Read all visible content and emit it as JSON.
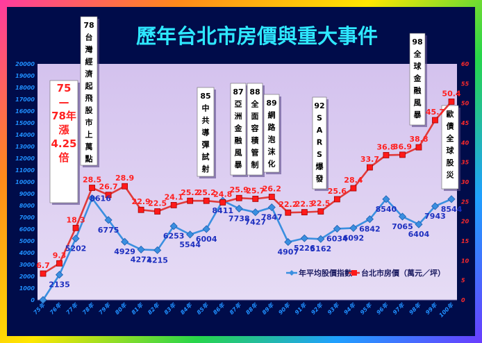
{
  "title": "歷年台北市房價與重大事件",
  "chart_data": {
    "type": "line",
    "title": "歷年台北市房價與重大事件",
    "categories": [
      "75年",
      "76年",
      "77年",
      "78年",
      "79年",
      "80年",
      "81年",
      "82年",
      "83年",
      "84年",
      "85年",
      "86年",
      "87年",
      "88年",
      "89年",
      "90年",
      "91年",
      "92年",
      "93年",
      "94年",
      "95年",
      "96年",
      "97年",
      "98年",
      "99年",
      "100年"
    ],
    "y_left": {
      "range": [
        0,
        20000
      ],
      "ticks": [
        "0",
        "1000",
        "2000",
        "3000",
        "4000",
        "5000",
        "6000",
        "7000",
        "8000",
        "9000",
        "10000",
        "11000",
        "12000",
        "13000",
        "14000",
        "15000",
        "16000",
        "17000",
        "18000",
        "19000",
        "20000"
      ]
    },
    "y_right": {
      "range": [
        0,
        60
      ],
      "ticks": [
        "0",
        "5",
        "10",
        "15",
        "20",
        "25",
        "30",
        "35",
        "40",
        "45",
        "50",
        "55",
        "60"
      ]
    },
    "series": [
      {
        "name": "年平均股價指數",
        "axis": "left",
        "color": "#3a8fe0",
        "values": [
          0,
          2135,
          5202,
          8616,
          6775,
          4929,
          4272,
          4215,
          6253,
          5544,
          6004,
          8411,
          7738,
          7427,
          7847,
          4907,
          5226,
          5162,
          6034,
          6092,
          6842,
          8540,
          7065,
          6404,
          7943,
          8544
        ],
        "labels": [
          "",
          "2135",
          "5202",
          "8616",
          "6775",
          "4929",
          "4272",
          "4215",
          "6253",
          "5544",
          "6004",
          "8411",
          "7738",
          "7427",
          "7847",
          "4907",
          "5226",
          "5162",
          "6034",
          "6092",
          "6842",
          "8540",
          "7065",
          "6404",
          "7943",
          "8544"
        ]
      },
      {
        "name": "台北市房價（萬元／坪）",
        "axis": "right",
        "color": "#e03a3a",
        "values": [
          6.7,
          9.3,
          18.3,
          28.5,
          26.7,
          28.9,
          22.9,
          22.5,
          24.1,
          25.2,
          25.2,
          24.8,
          25.9,
          25.7,
          26.2,
          22.2,
          22.3,
          22.5,
          25.6,
          28.4,
          33.7,
          36.8,
          36.9,
          38.8,
          45.7,
          50.4
        ],
        "labels": [
          "6.7",
          "9.3",
          "18.3",
          "28.5",
          "26.7",
          "28.9",
          "22.9",
          "22.5",
          "24.1",
          "25.2",
          "25.2",
          "24.8",
          "25.9",
          "25.7",
          "26.2",
          "22.2",
          "22.3",
          "22.5",
          "25.6",
          "28.4",
          "33.7",
          "36.8",
          "36.9",
          "38.8",
          "45.7",
          "50.4"
        ]
      }
    ],
    "legend": {
      "position": "bottom-right",
      "items": [
        "年平均股價指數",
        "台北市房價（萬元／坪）"
      ]
    },
    "annotations": [
      {
        "text": "75—78年漲4.25倍",
        "lines": [
          "75",
          "—",
          "78年",
          "漲",
          "4.25",
          "倍"
        ]
      },
      {
        "text": "78台灣經濟起飛股市上萬點",
        "lines": [
          "78",
          "台",
          "灣",
          "經",
          "濟",
          "起",
          "飛",
          "股",
          "市",
          "上",
          "萬",
          "點"
        ]
      },
      {
        "text": "85中共導彈試射",
        "lines": [
          "85",
          "中",
          "共",
          "導",
          "彈",
          "試",
          "射"
        ]
      },
      {
        "text": "87亞洲金融風暴",
        "lines": [
          "87",
          "亞",
          "洲",
          "金",
          "融",
          "風",
          "暴"
        ]
      },
      {
        "text": "88全面容積管制",
        "lines": [
          "88",
          "全",
          "面",
          "容",
          "積",
          "管",
          "制"
        ]
      },
      {
        "text": "89網路泡沫化",
        "lines": [
          "89",
          "網",
          "路",
          "泡",
          "沫",
          "化"
        ]
      },
      {
        "text": "92SARS爆發",
        "lines": [
          "92",
          "S",
          "A",
          "R",
          "S",
          "爆",
          "發"
        ]
      },
      {
        "text": "98全球金融風暴",
        "lines": [
          "98",
          "全",
          "球",
          "金",
          "融",
          "風",
          "暴"
        ]
      },
      {
        "text": "歐債全球股災",
        "lines": [
          "歐",
          "債",
          "全",
          "球",
          "股",
          "災"
        ]
      }
    ]
  },
  "colors": {
    "background": "#000c4a",
    "plot": "#d9c7ef",
    "title": "#2ee8ff",
    "stock": "#3a8fe0",
    "price": "#e03a3a"
  }
}
